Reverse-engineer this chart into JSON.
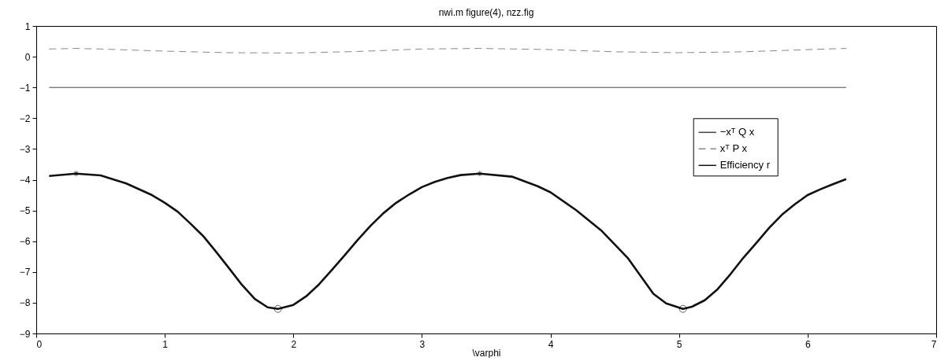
{
  "chart_data": {
    "type": "line",
    "title": "nwi.m figure(4), nzz.fig",
    "xlabel": "\\varphi",
    "xlim": [
      0,
      7
    ],
    "xticks": [
      0,
      1,
      2,
      3,
      4,
      5,
      6,
      7
    ],
    "ylim": [
      -9,
      1
    ],
    "yticks": [
      -9,
      -8,
      -7,
      -6,
      -5,
      -4,
      -3,
      -2,
      -1,
      0,
      1
    ],
    "legend": "right",
    "series": [
      {
        "name": "−xᵀ Q x",
        "color": "#444444",
        "line_style": "solid",
        "x": [
          0.1,
          6.3
        ],
        "values": [
          -1,
          -1
        ]
      },
      {
        "name": "xᵀ P x",
        "color": "#888888",
        "line_style": "dashed",
        "x": [
          0.1,
          0.3,
          0.5,
          1.0,
          1.5,
          2.0,
          2.5,
          3.0,
          3.45,
          4.0,
          4.5,
          5.0,
          5.5,
          6.0,
          6.3
        ],
        "values": [
          0.25,
          0.27,
          0.25,
          0.18,
          0.13,
          0.12,
          0.17,
          0.25,
          0.27,
          0.23,
          0.16,
          0.13,
          0.16,
          0.23,
          0.27
        ]
      },
      {
        "name": "Efficiency  r",
        "color": "#111111",
        "line_style": "solid",
        "x": [
          0.1,
          0.31,
          0.5,
          0.7,
          0.9,
          1.0,
          1.1,
          1.2,
          1.3,
          1.4,
          1.5,
          1.6,
          1.7,
          1.8,
          1.88,
          2.0,
          2.1,
          2.2,
          2.3,
          2.4,
          2.5,
          2.6,
          2.7,
          2.8,
          2.9,
          3.0,
          3.1,
          3.2,
          3.3,
          3.45,
          3.7,
          3.9,
          4.0,
          4.2,
          4.4,
          4.6,
          4.8,
          4.9,
          5.03,
          5.1,
          5.2,
          5.3,
          5.4,
          5.5,
          5.6,
          5.7,
          5.8,
          5.9,
          6.0,
          6.1,
          6.2,
          6.3
        ],
        "values": [
          -3.88,
          -3.8,
          -3.86,
          -4.12,
          -4.5,
          -4.75,
          -5.04,
          -5.43,
          -5.84,
          -6.35,
          -6.88,
          -7.42,
          -7.88,
          -8.15,
          -8.2,
          -8.07,
          -7.79,
          -7.4,
          -6.93,
          -6.45,
          -5.96,
          -5.5,
          -5.09,
          -4.75,
          -4.48,
          -4.24,
          -4.07,
          -3.94,
          -3.85,
          -3.8,
          -3.9,
          -4.21,
          -4.41,
          -4.99,
          -5.67,
          -6.54,
          -7.71,
          -8.02,
          -8.2,
          -8.13,
          -7.92,
          -7.56,
          -7.07,
          -6.54,
          -6.06,
          -5.57,
          -5.14,
          -4.8,
          -4.5,
          -4.31,
          -4.14,
          -3.98
        ]
      },
      {
        "type": "scatter",
        "marker": "cross",
        "color": "#000000",
        "x": [
          0.31,
          3.45
        ],
        "values": [
          -3.8,
          -3.8
        ]
      },
      {
        "type": "scatter",
        "marker": "circle",
        "color": "#000000",
        "x": [
          1.88,
          5.03
        ],
        "values": [
          -8.2,
          -8.2
        ]
      }
    ]
  }
}
